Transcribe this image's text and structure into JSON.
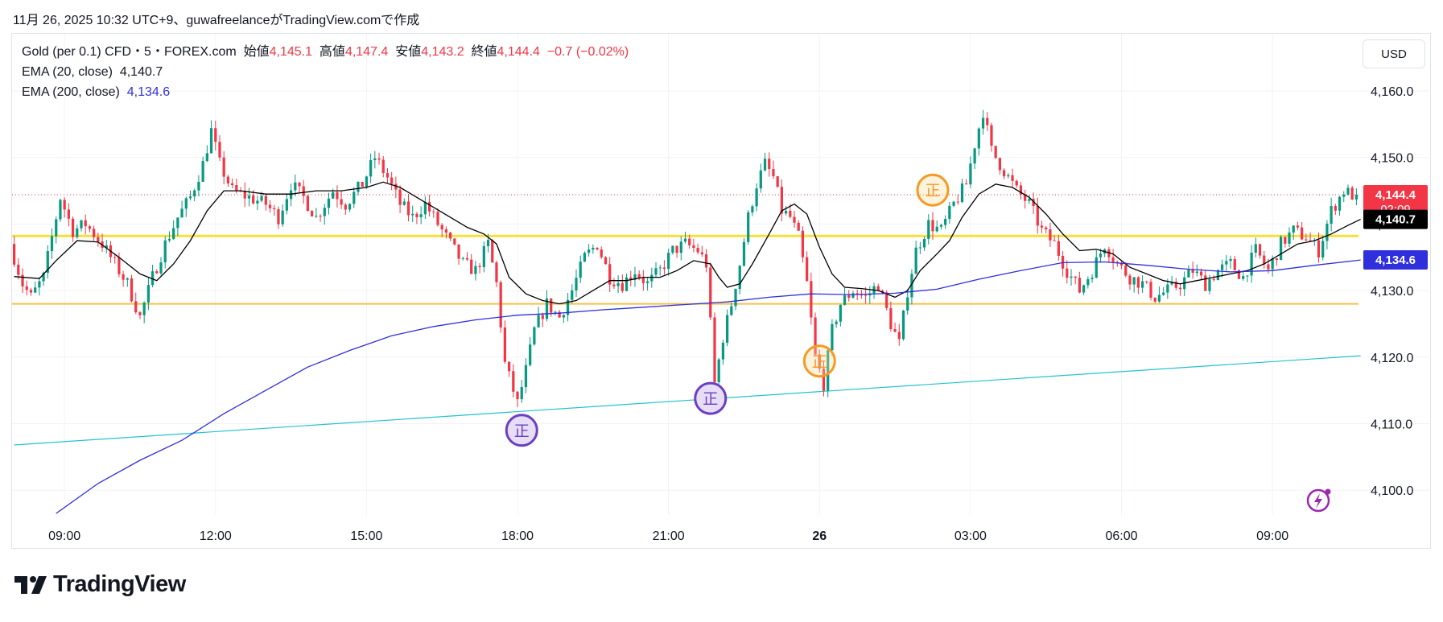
{
  "header": {
    "caption": "11月 26, 2025 10:32 UTC+9、guwafreelanceがTradingView.comで作成"
  },
  "legend": {
    "symbol": "Gold (per 0.1) CFD・5・FOREX.com",
    "open_label": "始値",
    "open": "4,145.1",
    "high_label": "高値",
    "high": "4,147.4",
    "low_label": "安値",
    "low": "4,143.2",
    "close_label": "終値",
    "close": "4,144.4",
    "change": "−0.7 (−0.02%)",
    "ema20_label": "EMA (20, close)",
    "ema20_value": "4,140.7",
    "ema200_label": "EMA (200, close)",
    "ema200_value": "4,134.6"
  },
  "toolbar": {
    "currency": "USD"
  },
  "brand": {
    "name": "TradingView"
  },
  "colors": {
    "up": "#089981",
    "down": "#f23645",
    "ema20": "#000000",
    "ema200": "#2f2fdc",
    "trendline": "#22c3cf",
    "support_yellow": "#f5e03b",
    "support_orange": "#f7c04a",
    "marker_purple": "#6b3fc2",
    "marker_orange": "#f59a23"
  },
  "chart_data": {
    "type": "candlestick",
    "title": "Gold (per 0.1) CFD・5・FOREX.com",
    "timeframe": "5",
    "ylim": [
      4096.5,
      4164.8
    ],
    "y_ticks": [
      4100,
      4110,
      4120,
      4130,
      4140,
      4150,
      4160
    ],
    "y_tick_labels": [
      "4,100.0",
      "4,110.0",
      "4,120.0",
      "4,130.0",
      "4,140.0",
      "4,150.0",
      "4,160.0"
    ],
    "x_ticks": [
      {
        "label": "09:00",
        "bar": 12
      },
      {
        "label": "12:00",
        "bar": 48
      },
      {
        "label": "15:00",
        "bar": 84
      },
      {
        "label": "18:00",
        "bar": 120
      },
      {
        "label": "21:00",
        "bar": 156
      },
      {
        "label": "26",
        "bar": 192
      },
      {
        "label": "03:00",
        "bar": 228
      },
      {
        "label": "06:00",
        "bar": 264
      },
      {
        "label": "09:00",
        "bar": 300
      }
    ],
    "bar_count": 321,
    "price_badges": [
      {
        "label": "4,144.4",
        "sublabel": "02:09",
        "value": 4144.4,
        "color": "#f23645"
      },
      {
        "label": "4,140.7",
        "value": 4140.7,
        "color": "#000000"
      },
      {
        "label": "4,134.6",
        "value": 4134.6,
        "color": "#2f2fdc"
      }
    ],
    "last_price": 4144.4,
    "horizontal_lines": [
      {
        "name": "yellow-level",
        "value": 4138.2,
        "color": "#f5e03b"
      },
      {
        "name": "orange-level",
        "value": 4128.0,
        "color": "#f7c04a"
      }
    ],
    "trendline": {
      "from_bar": 0,
      "from_value": 4106.8,
      "to_bar": 321,
      "to_value": 4120.2
    },
    "candle_anchors": [
      [
        0,
        4137
      ],
      [
        3,
        4131
      ],
      [
        5,
        4129
      ],
      [
        8,
        4132
      ],
      [
        12,
        4144
      ],
      [
        15,
        4139
      ],
      [
        18,
        4140
      ],
      [
        22,
        4137
      ],
      [
        25,
        4134
      ],
      [
        28,
        4131
      ],
      [
        31,
        4126
      ],
      [
        34,
        4132
      ],
      [
        37,
        4137
      ],
      [
        40,
        4141
      ],
      [
        43,
        4144
      ],
      [
        46,
        4149
      ],
      [
        48,
        4154
      ],
      [
        50,
        4149
      ],
      [
        53,
        4145
      ],
      [
        57,
        4144
      ],
      [
        61,
        4143
      ],
      [
        64,
        4141
      ],
      [
        67,
        4146
      ],
      [
        70,
        4144
      ],
      [
        73,
        4141
      ],
      [
        77,
        4145
      ],
      [
        80,
        4143
      ],
      [
        84,
        4146
      ],
      [
        87,
        4150
      ],
      [
        90,
        4147
      ],
      [
        93,
        4143
      ],
      [
        96,
        4141
      ],
      [
        99,
        4143
      ],
      [
        102,
        4140
      ],
      [
        105,
        4137
      ],
      [
        108,
        4134
      ],
      [
        111,
        4133
      ],
      [
        114,
        4137
      ],
      [
        116,
        4131
      ],
      [
        118,
        4119
      ],
      [
        121,
        4113
      ],
      [
        123,
        4118
      ],
      [
        125,
        4124
      ],
      [
        128,
        4128
      ],
      [
        131,
        4126
      ],
      [
        134,
        4130
      ],
      [
        137,
        4135
      ],
      [
        140,
        4137
      ],
      [
        143,
        4132
      ],
      [
        146,
        4131
      ],
      [
        149,
        4133
      ],
      [
        152,
        4131
      ],
      [
        155,
        4133
      ],
      [
        158,
        4136
      ],
      [
        161,
        4137
      ],
      [
        164,
        4136
      ],
      [
        166,
        4134
      ],
      [
        168,
        4116
      ],
      [
        170,
        4123
      ],
      [
        172,
        4128
      ],
      [
        174,
        4134
      ],
      [
        176,
        4141
      ],
      [
        178,
        4146
      ],
      [
        180,
        4149
      ],
      [
        182,
        4147
      ],
      [
        184,
        4142
      ],
      [
        186,
        4141
      ],
      [
        188,
        4138
      ],
      [
        190,
        4131
      ],
      [
        192,
        4120
      ],
      [
        194,
        4116
      ],
      [
        196,
        4124
      ],
      [
        198,
        4128
      ],
      [
        201,
        4130
      ],
      [
        204,
        4129
      ],
      [
        207,
        4131
      ],
      [
        210,
        4125
      ],
      [
        212,
        4122
      ],
      [
        214,
        4130
      ],
      [
        216,
        4136
      ],
      [
        219,
        4140
      ],
      [
        222,
        4139
      ],
      [
        225,
        4143
      ],
      [
        228,
        4146
      ],
      [
        230,
        4152
      ],
      [
        232,
        4157
      ],
      [
        234,
        4151
      ],
      [
        236,
        4149
      ],
      [
        238,
        4147
      ],
      [
        240,
        4145
      ],
      [
        243,
        4143
      ],
      [
        246,
        4139
      ],
      [
        249,
        4137
      ],
      [
        252,
        4133
      ],
      [
        255,
        4130
      ],
      [
        258,
        4133
      ],
      [
        261,
        4137
      ],
      [
        264,
        4134
      ],
      [
        267,
        4132
      ],
      [
        270,
        4131
      ],
      [
        273,
        4129
      ],
      [
        276,
        4130
      ],
      [
        279,
        4131
      ],
      [
        282,
        4133
      ],
      [
        285,
        4131
      ],
      [
        288,
        4133
      ],
      [
        291,
        4134
      ],
      [
        294,
        4132
      ],
      [
        297,
        4136
      ],
      [
        300,
        4133
      ],
      [
        303,
        4137
      ],
      [
        306,
        4139
      ],
      [
        309,
        4138
      ],
      [
        312,
        4136
      ],
      [
        315,
        4142
      ],
      [
        318,
        4145
      ],
      [
        320,
        4144.4
      ]
    ],
    "series": [
      {
        "name": "EMA (20, close)",
        "color": "#000000",
        "points": [
          [
            0,
            4132.1
          ],
          [
            6,
            4131.8
          ],
          [
            10,
            4134.5
          ],
          [
            15,
            4137.5
          ],
          [
            20,
            4137.3
          ],
          [
            25,
            4135.0
          ],
          [
            30,
            4132.5
          ],
          [
            34,
            4131.5
          ],
          [
            38,
            4134.0
          ],
          [
            42,
            4137.5
          ],
          [
            46,
            4142.0
          ],
          [
            50,
            4145.0
          ],
          [
            54,
            4145.0
          ],
          [
            60,
            4144.5
          ],
          [
            66,
            4144.5
          ],
          [
            72,
            4145.0
          ],
          [
            78,
            4145.0
          ],
          [
            84,
            4145.5
          ],
          [
            88,
            4146.3
          ],
          [
            92,
            4145.5
          ],
          [
            96,
            4144.0
          ],
          [
            100,
            4142.5
          ],
          [
            104,
            4141.0
          ],
          [
            108,
            4139.5
          ],
          [
            112,
            4138.5
          ],
          [
            115,
            4137.0
          ],
          [
            118,
            4132.0
          ],
          [
            122,
            4129.5
          ],
          [
            126,
            4128.5
          ],
          [
            130,
            4128.0
          ],
          [
            134,
            4128.5
          ],
          [
            138,
            4130.0
          ],
          [
            142,
            4131.5
          ],
          [
            146,
            4131.5
          ],
          [
            150,
            4132.0
          ],
          [
            154,
            4132.0
          ],
          [
            158,
            4133.0
          ],
          [
            162,
            4134.5
          ],
          [
            166,
            4134.0
          ],
          [
            168,
            4132.0
          ],
          [
            170,
            4130.5
          ],
          [
            173,
            4131.0
          ],
          [
            176,
            4134.0
          ],
          [
            180,
            4138.5
          ],
          [
            183,
            4142.0
          ],
          [
            186,
            4143.0
          ],
          [
            189,
            4141.5
          ],
          [
            192,
            4136.5
          ],
          [
            195,
            4132.5
          ],
          [
            198,
            4130.5
          ],
          [
            202,
            4130.3
          ],
          [
            206,
            4130.0
          ],
          [
            210,
            4129.0
          ],
          [
            213,
            4130.0
          ],
          [
            216,
            4133.0
          ],
          [
            220,
            4135.5
          ],
          [
            223,
            4137.5
          ],
          [
            226,
            4141.0
          ],
          [
            230,
            4144.5
          ],
          [
            234,
            4146.0
          ],
          [
            238,
            4145.5
          ],
          [
            242,
            4144.0
          ],
          [
            246,
            4141.5
          ],
          [
            250,
            4138.5
          ],
          [
            254,
            4136.0
          ],
          [
            258,
            4136.2
          ],
          [
            262,
            4135.5
          ],
          [
            266,
            4133.5
          ],
          [
            270,
            4132.5
          ],
          [
            274,
            4131.5
          ],
          [
            278,
            4131.0
          ],
          [
            282,
            4131.5
          ],
          [
            286,
            4132.0
          ],
          [
            290,
            4132.5
          ],
          [
            294,
            4133.0
          ],
          [
            298,
            4134.0
          ],
          [
            302,
            4135.5
          ],
          [
            306,
            4137.0
          ],
          [
            310,
            4137.5
          ],
          [
            314,
            4138.5
          ],
          [
            318,
            4139.8
          ],
          [
            321,
            4140.7
          ]
        ]
      },
      {
        "name": "EMA (200, close)",
        "color": "#2f2fdc",
        "points": [
          [
            10,
            4096.5
          ],
          [
            20,
            4101.0
          ],
          [
            30,
            4104.5
          ],
          [
            40,
            4107.5
          ],
          [
            50,
            4111.5
          ],
          [
            60,
            4115.0
          ],
          [
            70,
            4118.5
          ],
          [
            80,
            4121.0
          ],
          [
            90,
            4123.2
          ],
          [
            100,
            4124.6
          ],
          [
            110,
            4125.6
          ],
          [
            120,
            4126.3
          ],
          [
            130,
            4126.6
          ],
          [
            140,
            4127.1
          ],
          [
            150,
            4127.5
          ],
          [
            160,
            4127.9
          ],
          [
            170,
            4128.3
          ],
          [
            180,
            4129.0
          ],
          [
            190,
            4129.5
          ],
          [
            200,
            4129.4
          ],
          [
            210,
            4129.6
          ],
          [
            220,
            4130.2
          ],
          [
            230,
            4131.7
          ],
          [
            240,
            4133.0
          ],
          [
            250,
            4134.2
          ],
          [
            260,
            4134.3
          ],
          [
            270,
            4133.8
          ],
          [
            280,
            4133.2
          ],
          [
            290,
            4132.8
          ],
          [
            300,
            4133.0
          ],
          [
            310,
            4133.8
          ],
          [
            321,
            4134.6
          ]
        ]
      }
    ],
    "markers": [
      {
        "label": "正",
        "bar": 121,
        "value": 4109.0,
        "style": "purple"
      },
      {
        "label": "正",
        "bar": 166,
        "value": 4113.8,
        "style": "purple"
      },
      {
        "label": "正",
        "bar": 192,
        "value": 4119.4,
        "style": "orange"
      },
      {
        "label": "正",
        "bar": 219,
        "value": 4145.1,
        "style": "orange"
      }
    ]
  }
}
